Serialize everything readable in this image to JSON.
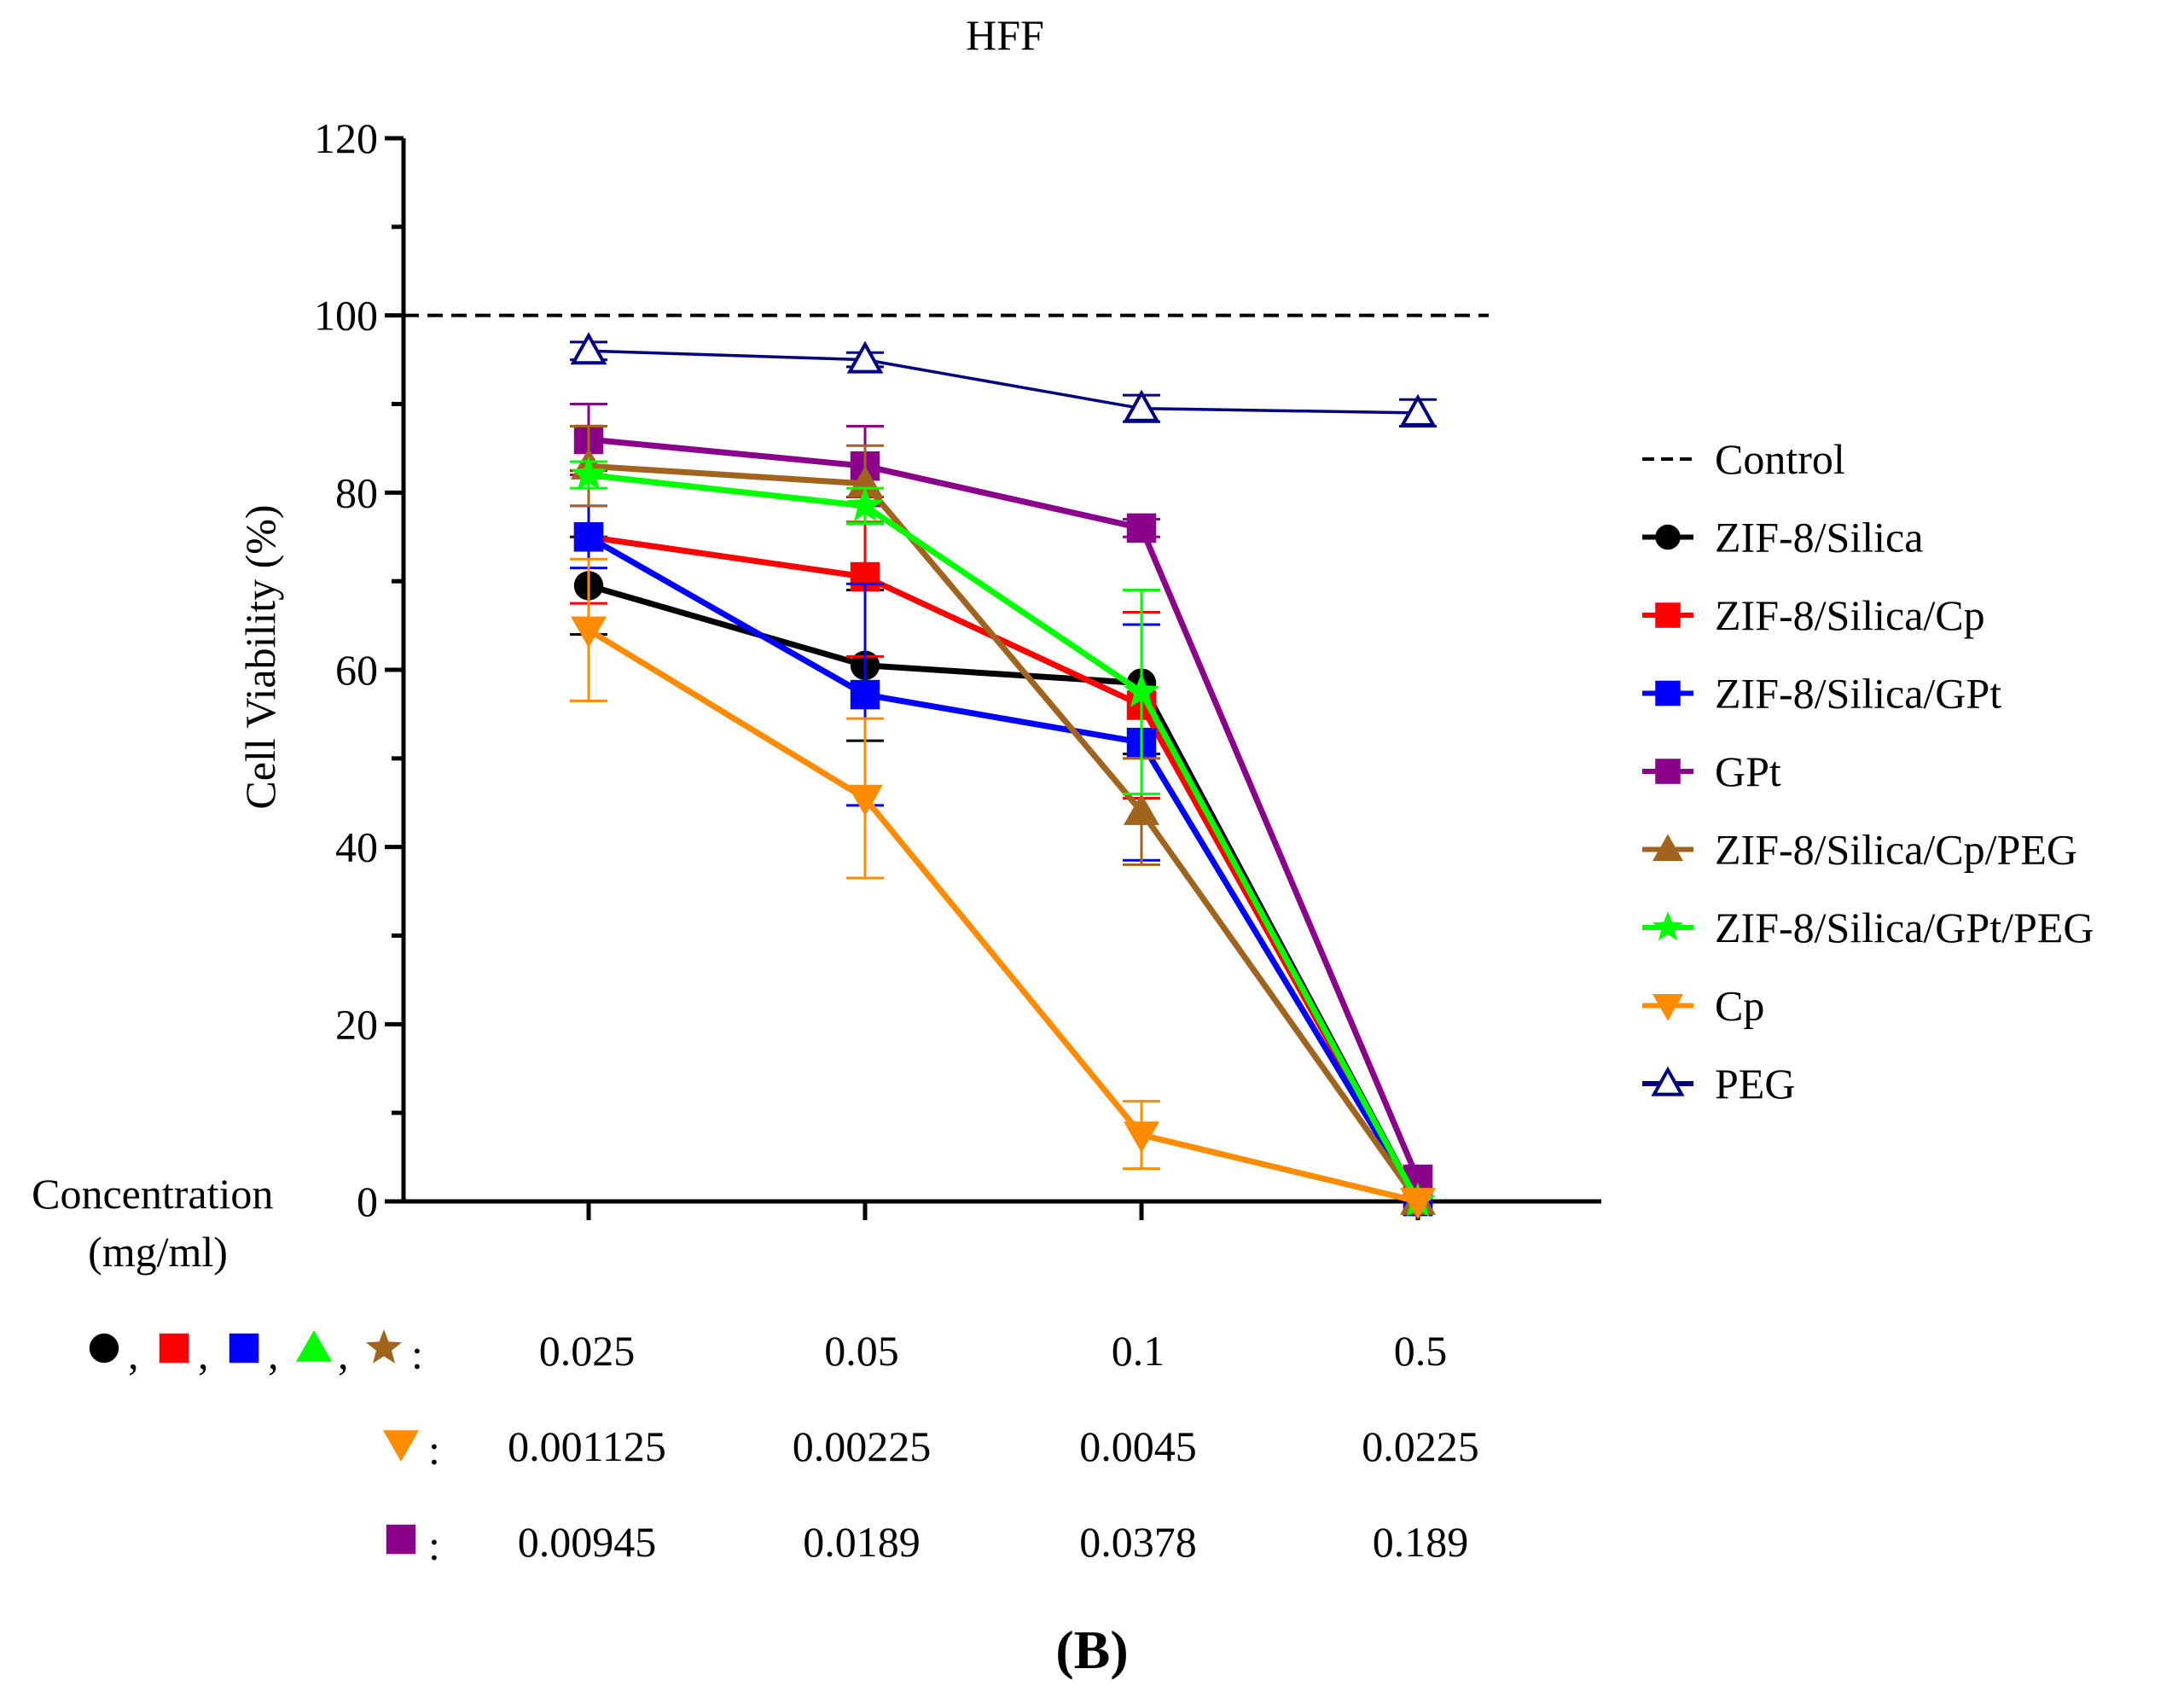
{
  "chart_data": {
    "type": "line",
    "title": "HFF",
    "ylabel": "Cell Viability (%)",
    "xlabel": "Concentration (mg/ml)",
    "xlabel_lines": [
      "Concentration",
      "(mg/ml)"
    ],
    "panel_label": "(B)",
    "ylim": [
      0,
      120
    ],
    "yticks": [
      "0",
      "20",
      "40",
      "60",
      "80",
      "100",
      "120"
    ],
    "grid": false,
    "legend_position": "right",
    "control": {
      "name": "Control",
      "value": 100,
      "color": "#000000"
    },
    "series": [
      {
        "name": "ZIF-8/Silica",
        "color": "#000000",
        "marker": "circle",
        "values": [
          69.5,
          60.5,
          58.5,
          0
        ],
        "errors": [
          5.5,
          8.5,
          8.0,
          0
        ]
      },
      {
        "name": "ZIF-8/Silica/Cp",
        "color": "#ff0000",
        "marker": "square",
        "values": [
          75,
          70.5,
          56,
          0
        ],
        "errors": [
          7.5,
          9.0,
          10.5,
          0
        ]
      },
      {
        "name": "ZIF-8/Silica/GPt",
        "color": "#0000ff",
        "marker": "square",
        "values": [
          75,
          57.2,
          51.8,
          0
        ],
        "errors": [
          3.5,
          12.5,
          13.3,
          0
        ]
      },
      {
        "name": "GPt",
        "color": "#8b008b",
        "marker": "square",
        "values": [
          86,
          83,
          76,
          2.5
        ],
        "errors": [
          4.0,
          4.5,
          1.0,
          0
        ]
      },
      {
        "name": "ZIF-8/Silica/Cp/PEG",
        "color": "#a0641e",
        "marker": "triangle-up",
        "values": [
          83,
          81,
          44,
          0
        ],
        "errors": [
          4.5,
          4.3,
          6.0,
          0
        ]
      },
      {
        "name": "ZIF-8/Silica/GPt/PEG",
        "color": "#00ff00",
        "marker": "star",
        "values": [
          82,
          78.5,
          57.5,
          0
        ],
        "errors": [
          1.5,
          2.0,
          11.5,
          0
        ]
      },
      {
        "name": "Cp",
        "color": "#ff8c00",
        "marker": "triangle-down",
        "values": [
          64.5,
          45.5,
          7.5,
          0
        ],
        "errors": [
          8.0,
          9.0,
          3.8,
          0
        ]
      },
      {
        "name": "PEG",
        "color": "#000080",
        "marker": "triangle-open",
        "values": [
          96,
          95,
          89.5,
          89
        ],
        "errors": [
          1.0,
          0.8,
          1.5,
          1.5
        ]
      }
    ],
    "concentration_rows": [
      {
        "key_markers": [
          {
            "shape": "circle",
            "color": "#000000"
          },
          {
            "shape": "square",
            "color": "#ff0000"
          },
          {
            "shape": "square",
            "color": "#0000ff"
          },
          {
            "shape": "triangle-up",
            "color": "#00ff00"
          },
          {
            "shape": "star",
            "color": "#a0641e"
          }
        ],
        "separator": ",",
        "colon": ":",
        "values": [
          "0.025",
          "0.05",
          "0.1",
          "0.5"
        ]
      },
      {
        "key_markers": [
          {
            "shape": "triangle-down",
            "color": "#ff8c00"
          }
        ],
        "separator": ",",
        "colon": ":",
        "values": [
          "0.001125",
          "0.00225",
          "0.0045",
          "0.0225"
        ]
      },
      {
        "key_markers": [
          {
            "shape": "square",
            "color": "#8b008b"
          }
        ],
        "separator": ",",
        "colon": ":",
        "values": [
          "0.00945",
          "0.0189",
          "0.0378",
          "0.189"
        ]
      }
    ]
  }
}
